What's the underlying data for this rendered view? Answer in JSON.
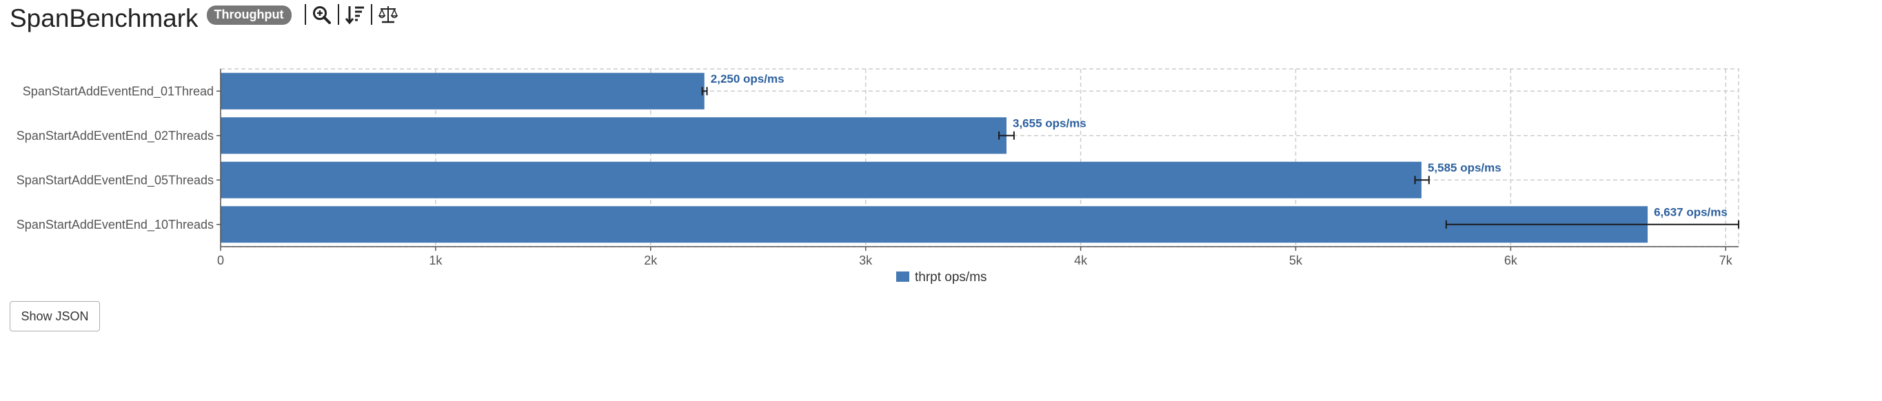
{
  "header": {
    "title": "SpanBenchmark",
    "badge": "Throughput",
    "tools": [
      "zoom-icon",
      "sort-icon",
      "compare-icon"
    ]
  },
  "buttons": {
    "show_json": "Show JSON"
  },
  "colors": {
    "bar": "#4479b4",
    "grid": "#cccccc",
    "error": "#1a1a1a",
    "label": "#2b5f9e"
  },
  "chart_data": {
    "type": "bar",
    "orientation": "horizontal",
    "categories": [
      "SpanStartAddEventEnd_01Thread",
      "SpanStartAddEventEnd_02Threads",
      "SpanStartAddEventEnd_05Threads",
      "SpanStartAddEventEnd_10Threads"
    ],
    "series": [
      {
        "name": "thrpt ops/ms",
        "values": [
          2250,
          3655,
          5585,
          6637
        ],
        "error_low": [
          2240,
          3620,
          5555,
          5700
        ],
        "error_high": [
          2262,
          3690,
          5620,
          7060
        ],
        "labels": [
          "2,250 ops/ms",
          "3,655 ops/ms",
          "5,585 ops/ms",
          "6,637 ops/ms"
        ]
      }
    ],
    "xlim": [
      0,
      7060
    ],
    "xticks": [
      0,
      1000,
      2000,
      3000,
      4000,
      5000,
      6000,
      7000
    ],
    "xtick_labels": [
      "0",
      "1k",
      "2k",
      "3k",
      "4k",
      "5k",
      "6k",
      "7k"
    ],
    "grid": true,
    "legend": "bottom-center",
    "legend_label": "thrpt ops/ms"
  }
}
